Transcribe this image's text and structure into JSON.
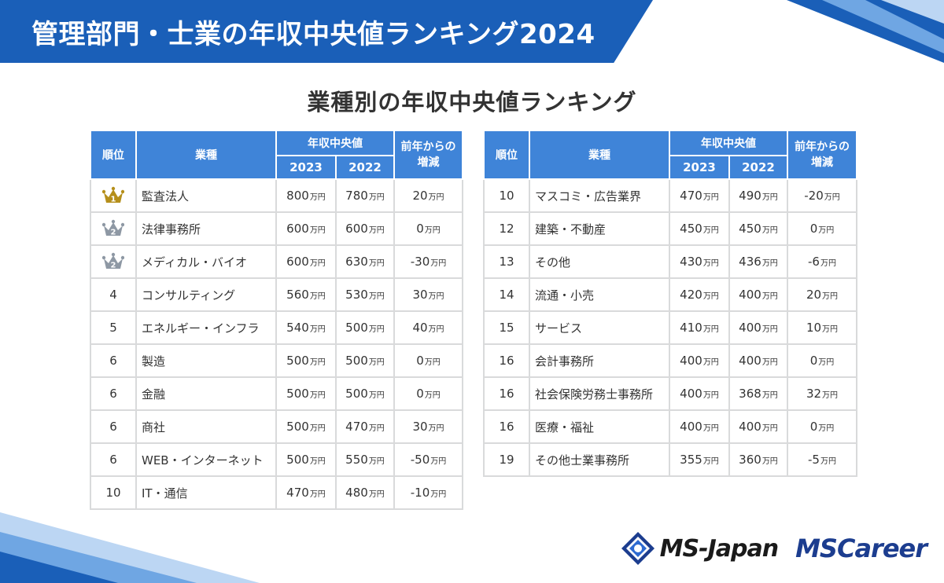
{
  "header": {
    "title": "管理部門・士業の年収中央値ランキング2024"
  },
  "subtitle": "業種別の年収中央値ランキング",
  "table_headers": {
    "rank": "順位",
    "industry": "業種",
    "median": "年収中央値",
    "y2023": "2023",
    "y2022": "2022",
    "change": "前年からの増減"
  },
  "unit": "万円",
  "colors": {
    "banner": "#1a5fb8",
    "header_cell": "#3f84d8",
    "rank_text": "#2a64b4",
    "increase": "#e5262c",
    "decrease": "#2f8ad4",
    "gold": "#b58f1b",
    "silver": "#8e98a4"
  },
  "chart_data": {
    "type": "table",
    "title": "業種別の年収中央値ランキング",
    "columns": [
      "順位",
      "業種",
      "2023",
      "2022",
      "前年からの増減"
    ],
    "left_rows": [
      {
        "rank": "1",
        "medal": "gold",
        "industry": "監査法人",
        "v2023": "800",
        "v2022": "780",
        "change": "20",
        "dir": "pos"
      },
      {
        "rank": "2",
        "medal": "silver",
        "industry": "法律事務所",
        "v2023": "600",
        "v2022": "600",
        "change": "0",
        "dir": "zero"
      },
      {
        "rank": "2",
        "medal": "silver",
        "industry": "メディカル・バイオ",
        "v2023": "600",
        "v2022": "630",
        "change": "-30",
        "dir": "neg"
      },
      {
        "rank": "4",
        "medal": "",
        "industry": "コンサルティング",
        "v2023": "560",
        "v2022": "530",
        "change": "30",
        "dir": "pos"
      },
      {
        "rank": "5",
        "medal": "",
        "industry": "エネルギー・インフラ",
        "v2023": "540",
        "v2022": "500",
        "change": "40",
        "dir": "pos"
      },
      {
        "rank": "6",
        "medal": "",
        "industry": "製造",
        "v2023": "500",
        "v2022": "500",
        "change": "0",
        "dir": "zero"
      },
      {
        "rank": "6",
        "medal": "",
        "industry": "金融",
        "v2023": "500",
        "v2022": "500",
        "change": "0",
        "dir": "zero"
      },
      {
        "rank": "6",
        "medal": "",
        "industry": "商社",
        "v2023": "500",
        "v2022": "470",
        "change": "30",
        "dir": "pos"
      },
      {
        "rank": "6",
        "medal": "",
        "industry": "WEB・インターネット",
        "v2023": "500",
        "v2022": "550",
        "change": "-50",
        "dir": "neg"
      },
      {
        "rank": "10",
        "medal": "",
        "industry": "IT・通信",
        "v2023": "470",
        "v2022": "480",
        "change": "-10",
        "dir": "neg"
      }
    ],
    "right_rows": [
      {
        "rank": "10",
        "medal": "",
        "industry": "マスコミ・広告業界",
        "v2023": "470",
        "v2022": "490",
        "change": "-20",
        "dir": "neg"
      },
      {
        "rank": "12",
        "medal": "",
        "industry": "建築・不動産",
        "v2023": "450",
        "v2022": "450",
        "change": "0",
        "dir": "zero"
      },
      {
        "rank": "13",
        "medal": "",
        "industry": "その他",
        "v2023": "430",
        "v2022": "436",
        "change": "-6",
        "dir": "neg"
      },
      {
        "rank": "14",
        "medal": "",
        "industry": "流通・小売",
        "v2023": "420",
        "v2022": "400",
        "change": "20",
        "dir": "pos"
      },
      {
        "rank": "15",
        "medal": "",
        "industry": "サービス",
        "v2023": "410",
        "v2022": "400",
        "change": "10",
        "dir": "pos"
      },
      {
        "rank": "16",
        "medal": "",
        "industry": "会計事務所",
        "v2023": "400",
        "v2022": "400",
        "change": "0",
        "dir": "zero"
      },
      {
        "rank": "16",
        "medal": "",
        "industry": "社会保険労務士事務所",
        "v2023": "400",
        "v2022": "368",
        "change": "32",
        "dir": "pos"
      },
      {
        "rank": "16",
        "medal": "",
        "industry": "医療・福祉",
        "v2023": "400",
        "v2022": "400",
        "change": "0",
        "dir": "zero"
      },
      {
        "rank": "19",
        "medal": "",
        "industry": "その他士業事務所",
        "v2023": "355",
        "v2022": "360",
        "change": "-5",
        "dir": "neg"
      }
    ]
  },
  "logos": {
    "ms_japan": "MS-Japan",
    "ms_career_ms": "MS",
    "ms_career_rest": "Career"
  }
}
